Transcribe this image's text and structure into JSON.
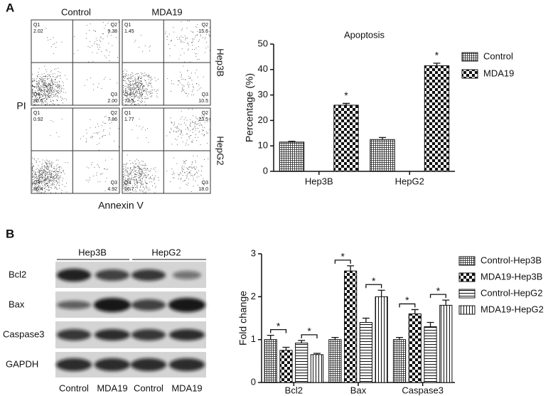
{
  "panels": [
    "A",
    "B"
  ],
  "flow_cytometry": {
    "column_labels": [
      "Control",
      "MDA19"
    ],
    "row_labels": [
      "Hep3B",
      "HepG2"
    ],
    "y_label": "PI",
    "x_label": "Annexin V",
    "quadrant_names": [
      "Q1",
      "Q2",
      "Q3",
      "Q4"
    ],
    "plots": [
      [
        "2.02",
        "9.38",
        "2.00",
        "86.6"
      ],
      [
        "1.45",
        "15.6",
        "10.5",
        "72.5"
      ],
      [
        "0.92",
        "7.86",
        "4.92",
        "86.4"
      ],
      [
        "1.77",
        "23.5",
        "18.0",
        "56.7"
      ]
    ]
  },
  "western_blot": {
    "group_labels": [
      "Hep3B",
      "HepG2"
    ],
    "row_labels": [
      "Bcl2",
      "Bax",
      "Caspase3",
      "GAPDH"
    ],
    "lane_labels": [
      "Control",
      "MDA19",
      "Control",
      "MDA19"
    ]
  },
  "chart_data": [
    {
      "type": "bar",
      "title": "Apoptosis",
      "y_label": "Percentage (%)",
      "categories": [
        "Hep3B",
        "HepG2"
      ],
      "series": [
        {
          "name": "Control",
          "pattern": "crosshatch",
          "values": [
            11.5,
            12.5
          ],
          "errors": [
            0.3,
            0.8
          ]
        },
        {
          "name": "MDA19",
          "pattern": "checker",
          "values": [
            26,
            41.5
          ],
          "errors": [
            0.7,
            1.0
          ],
          "marker": "*"
        }
      ],
      "ylim": [
        0,
        50
      ],
      "yticks": [
        0,
        10,
        20,
        30,
        40,
        50
      ]
    },
    {
      "type": "bar",
      "y_label": "Fold change",
      "categories": [
        "Bcl2",
        "Bax",
        "Caspase3"
      ],
      "series": [
        {
          "name": "Control-Hep3B",
          "pattern": "crosshatch",
          "values": [
            1.0,
            1.0,
            1.0
          ],
          "errors": [
            0.1,
            0.05,
            0.05
          ]
        },
        {
          "name": "MDA19-Hep3B",
          "pattern": "checker",
          "values": [
            0.75,
            2.6,
            1.6
          ],
          "errors": [
            0.07,
            0.12,
            0.1
          ],
          "marker": "*"
        },
        {
          "name": "Control-HepG2",
          "pattern": "hlines",
          "values": [
            0.92,
            1.4,
            1.3
          ],
          "errors": [
            0.06,
            0.1,
            0.1
          ]
        },
        {
          "name": "MDA19-HepG2",
          "pattern": "vlines",
          "values": [
            0.65,
            2.0,
            1.8
          ],
          "errors": [
            0.03,
            0.15,
            0.12
          ],
          "marker": "*"
        }
      ],
      "ylim": [
        0,
        3
      ],
      "yticks": [
        0,
        1,
        2,
        3
      ]
    }
  ]
}
